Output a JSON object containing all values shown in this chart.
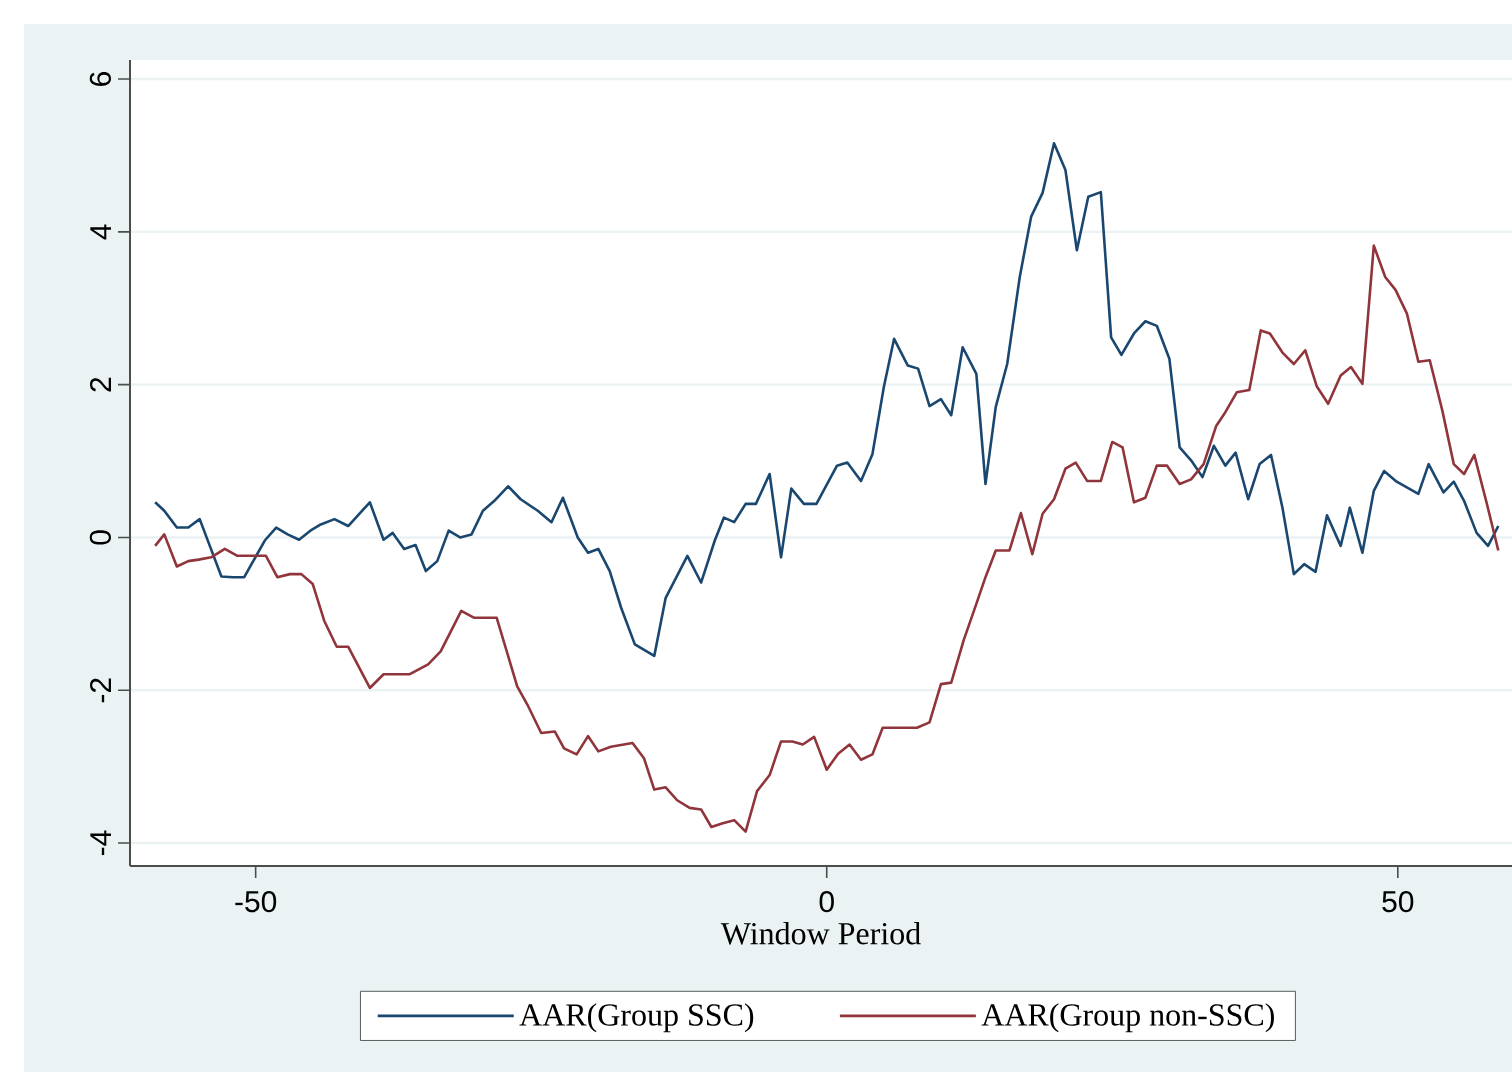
{
  "chart_data": {
    "type": "line",
    "xlabel": "Window Period",
    "xlim": [
      -61,
      60
    ],
    "ylim": [
      -4.3,
      6.25
    ],
    "xticks": [
      -50,
      0,
      50
    ],
    "yticks": [
      -4,
      -2,
      0,
      2,
      4,
      6
    ],
    "grid": "y",
    "legend": "bottom",
    "line_style": "solid",
    "series": [
      {
        "name": "AAR(Group SSC)",
        "color": "#1a476f",
        "x": [
          -58.8,
          -58,
          -56.9,
          -55.9,
          -54.9,
          -53,
          -52,
          -51,
          -49.2,
          -48.2,
          -47.2,
          -46.2,
          -45.1,
          -44.3,
          -43.1,
          -41.9,
          -40,
          -38.8,
          -38,
          -37,
          -36,
          -35.1,
          -34.1,
          -33.1,
          -32.1,
          -31.1,
          -30.1,
          -29.1,
          -27.9,
          -26.8,
          -25.3,
          -24.1,
          -23.1,
          -21.8,
          -20.9,
          -20,
          -19,
          -18,
          -16.8,
          -15.1,
          -14.1,
          -12.2,
          -11,
          -9.8,
          -9,
          -8.1,
          -7.1,
          -6.2,
          -5,
          -4,
          -3.1,
          -2,
          -0.9,
          0.9,
          1.8,
          3,
          4,
          5,
          5.9,
          7.1,
          8,
          9,
          10,
          10.9,
          11.9,
          13.1,
          13.9,
          14.8,
          15.8,
          16.9,
          17.9,
          18.9,
          19.9,
          20.9,
          21.9,
          22.9,
          24,
          24.9,
          25.8,
          26.9,
          27.9,
          28.9,
          30,
          30.9,
          31.9,
          32.9,
          33.9,
          34.9,
          35.8,
          36.9,
          37.9,
          38.9,
          39.9,
          40.9,
          41.8,
          42.8,
          43.8,
          45,
          45.8,
          46.9,
          47.9,
          48.8,
          49.9,
          51.8,
          52.7,
          54,
          54.9,
          55.8,
          56.9,
          57.9,
          58.8
        ],
        "values": [
          0.46,
          0.35,
          0.13,
          0.13,
          0.24,
          -0.51,
          -0.52,
          -0.52,
          -0.04,
          0.13,
          0.04,
          -0.03,
          0.1,
          0.17,
          0.24,
          0.15,
          0.46,
          -0.03,
          0.06,
          -0.15,
          -0.1,
          -0.44,
          -0.31,
          0.09,
          0,
          0.04,
          0.35,
          0.48,
          0.67,
          0.5,
          0.35,
          0.2,
          0.52,
          0,
          -0.2,
          -0.15,
          -0.44,
          -0.92,
          -1.4,
          -1.55,
          -0.79,
          -0.24,
          -0.59,
          -0.04,
          0.26,
          0.2,
          0.44,
          0.44,
          0.83,
          -0.26,
          0.64,
          0.44,
          0.44,
          0.94,
          0.98,
          0.74,
          1.09,
          1.97,
          2.6,
          2.25,
          2.21,
          1.72,
          1.81,
          1.6,
          2.49,
          2.14,
          0.7,
          1.71,
          2.27,
          3.41,
          4.2,
          4.51,
          5.16,
          4.81,
          3.76,
          4.46,
          4.52,
          2.62,
          2.39,
          2.67,
          2.83,
          2.77,
          2.34,
          1.18,
          1.01,
          0.79,
          1.2,
          0.94,
          1.11,
          0.5,
          0.96,
          1.08,
          0.39,
          -0.48,
          -0.35,
          -0.45,
          0.29,
          -0.11,
          0.39,
          -0.2,
          0.61,
          0.87,
          0.73,
          0.57,
          0.96,
          0.59,
          0.73,
          0.48,
          0.06,
          -0.11,
          0.15
        ]
      },
      {
        "name": "AAR(Group non-SSC)",
        "color": "#90353b",
        "x": [
          -58.8,
          -58,
          -56.9,
          -55.9,
          -55,
          -53.9,
          -52.7,
          -51.6,
          -50.4,
          -49.1,
          -48.1,
          -47,
          -46,
          -45,
          -44,
          -42.9,
          -41.9,
          -40,
          -38.8,
          -36.5,
          -34.9,
          -33.8,
          -32,
          -30.9,
          -28.9,
          -27.1,
          -26.2,
          -25,
          -23.8,
          -23,
          -21.9,
          -20.9,
          -20,
          -18.9,
          -17,
          -16,
          -15.1,
          -14.1,
          -13.1,
          -12,
          -11,
          -10.1,
          -9.1,
          -8.1,
          -7.1,
          -6.1,
          -5,
          -4,
          -3,
          -2.1,
          -1.1,
          0,
          1,
          2,
          3,
          4,
          4.9,
          5.9,
          7.9,
          9,
          10,
          10.9,
          12,
          13.1,
          13.9,
          14.8,
          16,
          17,
          18,
          18.9,
          19.9,
          20.9,
          21.8,
          22.8,
          24,
          25,
          25.9,
          26.9,
          27.9,
          28.9,
          29.8,
          30.9,
          31.9,
          33,
          34.1,
          34.9,
          35.9,
          37,
          38,
          38.8,
          39.9,
          40.9,
          41.9,
          42.9,
          43.9,
          45,
          45.9,
          46.9,
          47.9,
          48.9,
          49.8,
          50.8,
          51.8,
          52.8,
          53.9,
          54.9,
          55.8,
          56.7,
          57.8,
          58.8
        ],
        "values": [
          -0.11,
          0.04,
          -0.38,
          -0.31,
          -0.29,
          -0.26,
          -0.15,
          -0.24,
          -0.24,
          -0.24,
          -0.52,
          -0.48,
          -0.48,
          -0.61,
          -1.09,
          -1.43,
          -1.43,
          -1.97,
          -1.79,
          -1.79,
          -1.66,
          -1.49,
          -0.96,
          -1.05,
          -1.05,
          -1.95,
          -2.19,
          -2.56,
          -2.54,
          -2.76,
          -2.84,
          -2.6,
          -2.8,
          -2.74,
          -2.69,
          -2.89,
          -3.3,
          -3.27,
          -3.44,
          -3.54,
          -3.56,
          -3.79,
          -3.74,
          -3.7,
          -3.85,
          -3.32,
          -3.11,
          -2.67,
          -2.67,
          -2.71,
          -2.61,
          -3.04,
          -2.83,
          -2.71,
          -2.91,
          -2.84,
          -2.49,
          -2.49,
          -2.49,
          -2.42,
          -1.92,
          -1.9,
          -1.34,
          -0.87,
          -0.52,
          -0.17,
          -0.17,
          0.32,
          -0.22,
          0.31,
          0.5,
          0.9,
          0.98,
          0.74,
          0.74,
          1.25,
          1.18,
          0.46,
          0.52,
          0.94,
          0.94,
          0.7,
          0.76,
          0.96,
          1.46,
          1.64,
          1.9,
          1.93,
          2.71,
          2.67,
          2.42,
          2.27,
          2.45,
          1.98,
          1.75,
          2.12,
          2.23,
          2.01,
          3.82,
          3.41,
          3.24,
          2.93,
          2.3,
          2.32,
          1.66,
          0.96,
          0.83,
          1.08,
          0.44,
          -0.17
        ]
      }
    ]
  }
}
